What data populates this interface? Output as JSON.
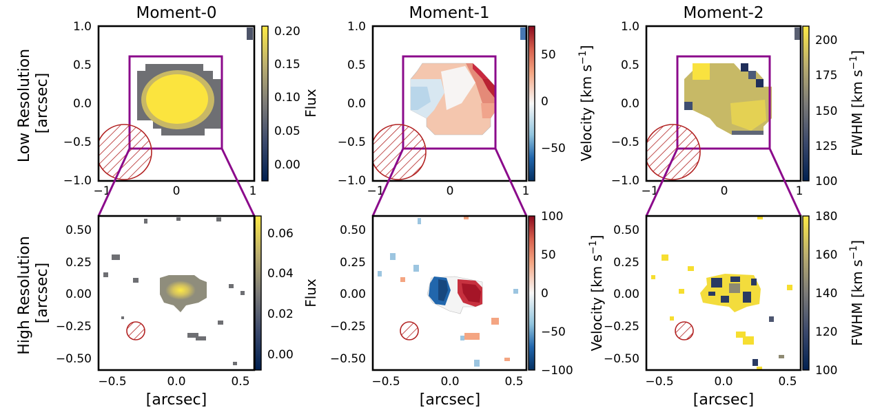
{
  "colors": {
    "cividis_low": "#002051",
    "cividis_mid": "#7c7b78",
    "cividis_high": "#fdea45",
    "rdbu_low": "#2166ac",
    "rdbu_mid": "#f7f7f7",
    "rdbu_high": "#b2182b",
    "zoom_box": "#8b0a8b",
    "beam": "#b22222"
  },
  "chart_data": [
    {
      "type": "heatmap",
      "panel": "low-moment0",
      "title": "Moment-0",
      "ylabel": "Low Resolution\n[arcsec]",
      "xlabel": "",
      "xlim": [
        -1,
        1
      ],
      "ylim": [
        -1,
        1
      ],
      "xticks": [
        "−1",
        "0",
        "1"
      ],
      "yticks": [
        "1.0",
        "0.5",
        "0.0",
        "−0.5",
        "−1.0"
      ],
      "colorbar": {
        "label": "Flux",
        "range": [
          -0.02,
          0.21
        ],
        "ticks": [
          "0.20",
          "0.15",
          "0.10",
          "0.05",
          "0.00"
        ],
        "cmap": "cividis"
      },
      "zoom_box": [
        -0.6,
        0.6,
        -0.6,
        0.6
      ],
      "beam": {
        "x": -0.85,
        "y": -0.7,
        "radius": 0.35
      }
    },
    {
      "type": "heatmap",
      "panel": "low-moment1",
      "title": "Moment-1",
      "xlim": [
        -1,
        1
      ],
      "ylim": [
        -1,
        1
      ],
      "xticks": [
        "−1",
        "0",
        "1"
      ],
      "yticks": [
        "1.0",
        "0.5",
        "0.0",
        "−0.5",
        "−1.0"
      ],
      "colorbar": {
        "label": "Velocity [km s⁻¹]",
        "range": [
          -85,
          85
        ],
        "ticks": [
          "50",
          "0",
          "−50"
        ],
        "cmap": "RdBu_r"
      },
      "zoom_box": [
        -0.6,
        0.6,
        -0.6,
        0.6
      ],
      "beam": {
        "x": -0.85,
        "y": -0.7,
        "radius": 0.35
      }
    },
    {
      "type": "heatmap",
      "panel": "low-moment2",
      "title": "Moment-2",
      "xlim": [
        -1,
        1
      ],
      "ylim": [
        -1,
        1
      ],
      "xticks": [
        "−1",
        "0",
        "1"
      ],
      "yticks": [
        "1.0",
        "0.5",
        "0.0",
        "−0.5",
        "−1.0"
      ],
      "colorbar": {
        "label": "FWHM [km s⁻¹]",
        "range": [
          100,
          210
        ],
        "ticks": [
          "200",
          "175",
          "150",
          "125",
          "100"
        ],
        "cmap": "cividis"
      },
      "zoom_box": [
        -0.6,
        0.6,
        -0.6,
        0.6
      ],
      "beam": {
        "x": -0.85,
        "y": -0.7,
        "radius": 0.35
      }
    },
    {
      "type": "heatmap",
      "panel": "high-moment0",
      "ylabel": "High Resolution\n[arcsec]",
      "xlabel": "[arcsec]",
      "xlim": [
        -0.6,
        0.6
      ],
      "ylim": [
        -0.6,
        0.6
      ],
      "xticks": [
        "−0.5",
        "0.0",
        "0.5"
      ],
      "yticks": [
        "0.50",
        "0.25",
        "0.00",
        "−0.25",
        "−0.50"
      ],
      "colorbar": {
        "label": "Flux",
        "range": [
          -0.01,
          0.067
        ],
        "ticks": [
          "0.06",
          "0.04",
          "0.02",
          "0.00"
        ],
        "cmap": "cividis"
      },
      "beam": {
        "x": -0.3,
        "y": -0.3,
        "radius": 0.07
      }
    },
    {
      "type": "heatmap",
      "panel": "high-moment1",
      "xlabel": "[arcsec]",
      "xlim": [
        -0.6,
        0.6
      ],
      "ylim": [
        -0.6,
        0.6
      ],
      "xticks": [
        "−0.5",
        "0.0",
        "0.5"
      ],
      "yticks": [
        "0.50",
        "0.25",
        "0.00",
        "−0.25",
        "−0.50"
      ],
      "colorbar": {
        "label": "Velocity [km s⁻¹]",
        "range": [
          -100,
          100
        ],
        "ticks": [
          "100",
          "50",
          "0",
          "−50",
          "−100"
        ],
        "cmap": "RdBu_r"
      },
      "beam": {
        "x": -0.3,
        "y": -0.3,
        "radius": 0.07
      }
    },
    {
      "type": "heatmap",
      "panel": "high-moment2",
      "xlabel": "[arcsec]",
      "xlim": [
        -0.6,
        0.6
      ],
      "ylim": [
        -0.6,
        0.6
      ],
      "xticks": [
        "−0.5",
        "0.0",
        "0.5"
      ],
      "yticks": [
        "0.50",
        "0.25",
        "0.00",
        "−0.25",
        "−0.50"
      ],
      "colorbar": {
        "label": "FWHM [km s⁻¹]",
        "range": [
          100,
          180
        ],
        "ticks": [
          "180",
          "160",
          "140",
          "120",
          "100"
        ],
        "cmap": "cividis"
      },
      "beam": {
        "x": -0.3,
        "y": -0.3,
        "radius": 0.07
      }
    }
  ]
}
